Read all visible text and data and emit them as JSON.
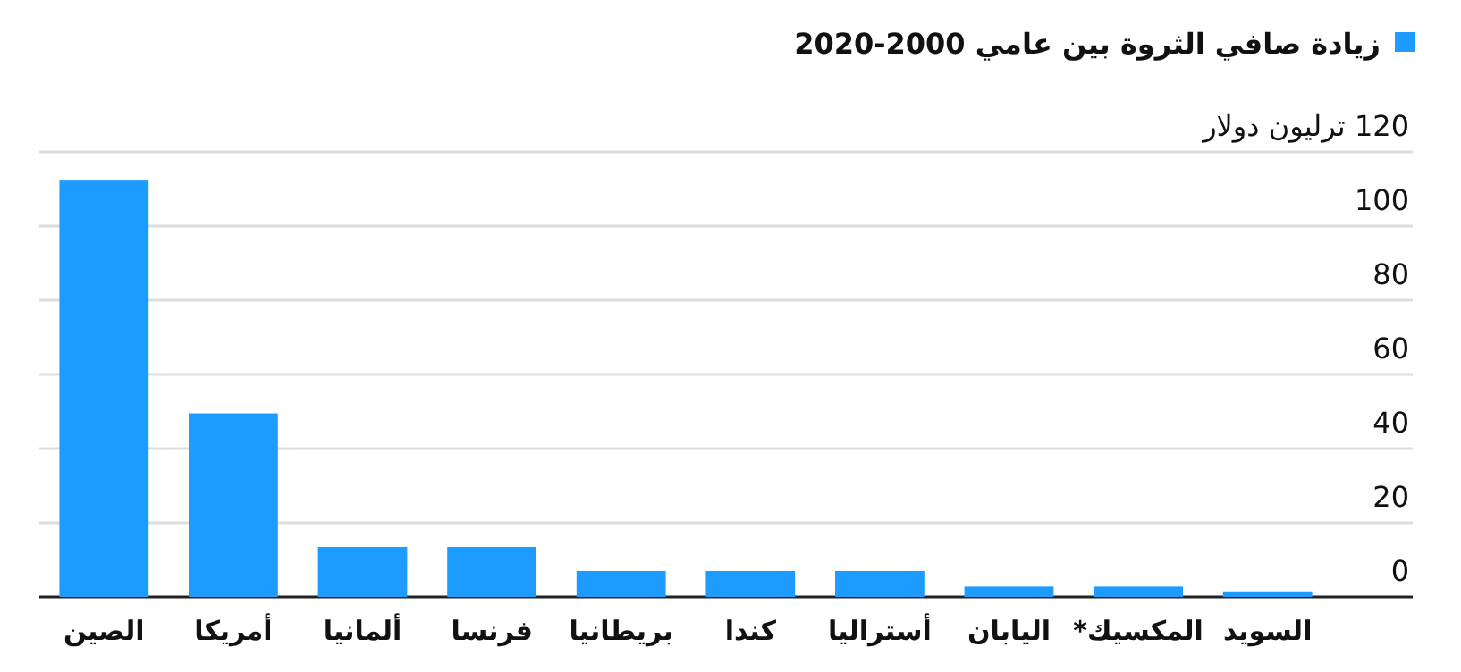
{
  "chart_data": {
    "type": "bar",
    "categories": [
      "الصين",
      "أمريكا",
      "ألمانيا",
      "فرنسا",
      "بريطانيا",
      "كندا",
      "أستراليا",
      "اليابان",
      "المكسيك*",
      "السويد"
    ],
    "series": [
      {
        "name": "زيادة صافي الثروة بين عامي 2000-2020",
        "color": "#1e9bff",
        "values": [
          112.5,
          49.5,
          13.5,
          13.5,
          7,
          7,
          7,
          2.8,
          2.8,
          1.5
        ]
      }
    ],
    "ylim": [
      0,
      120
    ],
    "yticks": [
      0,
      20,
      40,
      60,
      80,
      100,
      {
        "value": 120,
        "label": "120 ترليون دولار"
      }
    ],
    "grid": "y",
    "legend": "top right"
  }
}
